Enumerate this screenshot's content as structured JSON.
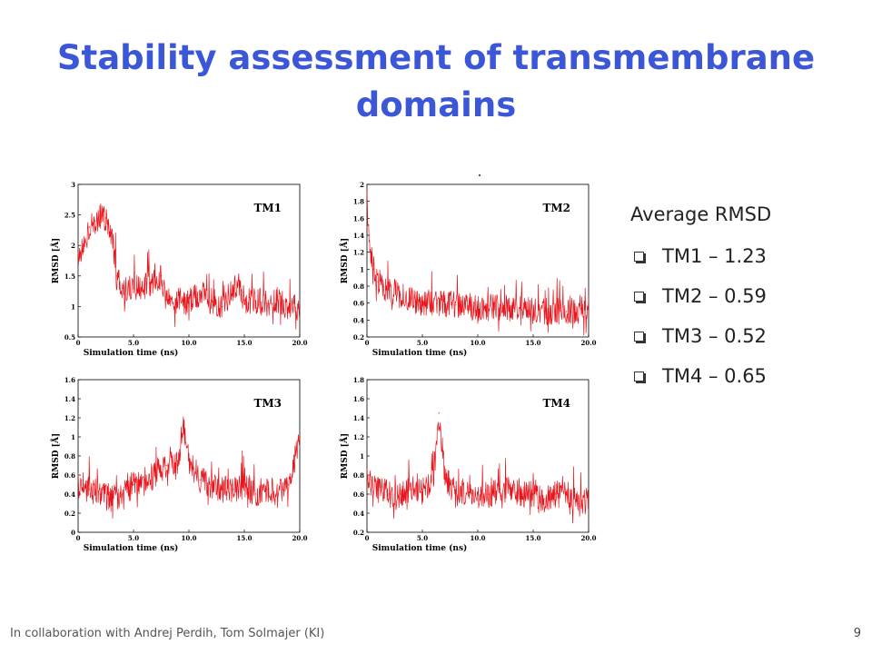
{
  "slide": {
    "title": "Stability assessment of transmembrane domains",
    "footer": "In collaboration with Andrej Perdih, Tom Solmajer (KI)",
    "page_number": "9"
  },
  "summary": {
    "heading": "Average RMSD",
    "items": [
      "TM1 – 1.23",
      "TM2 – 0.59",
      "TM3 – 0.52",
      "TM4 – 0.65"
    ]
  },
  "colors": {
    "title": "#3b57d8",
    "line": "#e8141b"
  },
  "chart_data": [
    {
      "type": "line",
      "label": "TM1",
      "xlabel": "Simulation time (ns)",
      "ylabel": "RMSD [Å]",
      "xlim": [
        0,
        20
      ],
      "ylim": [
        0.5,
        3
      ],
      "xticks": [
        "0",
        "5.0",
        "10.0",
        "15.0",
        "20.0"
      ],
      "xtick_values": [
        0,
        5,
        10,
        15,
        20
      ],
      "yticks": [
        "0.5",
        "1",
        "1.5",
        "2",
        "2.5",
        "3"
      ],
      "ytick_values": [
        0.5,
        1,
        1.5,
        2,
        2.5,
        3
      ],
      "mean": 1.23,
      "series": [
        {
          "x": [
            0,
            0.5,
            1,
            1.5,
            2,
            2.5,
            3,
            3.5,
            4,
            5,
            6,
            7,
            7.5,
            8,
            9,
            10,
            11,
            12,
            13,
            14,
            14.5,
            15,
            16,
            17,
            18,
            19,
            20
          ],
          "values": [
            1.7,
            2.0,
            2.3,
            2.4,
            2.5,
            2.45,
            2.2,
            1.5,
            1.3,
            1.3,
            1.35,
            1.35,
            1.5,
            1.1,
            1.1,
            1.05,
            1.2,
            1.1,
            1.0,
            1.3,
            1.35,
            1.1,
            1.1,
            1.05,
            1.1,
            1.0,
            1.0
          ]
        }
      ]
    },
    {
      "type": "line",
      "label": "TM2",
      "xlabel": "Simulation time (ns)",
      "ylabel": "RMSD [Å]",
      "xlim": [
        0,
        20
      ],
      "ylim": [
        0.2,
        2
      ],
      "xticks": [
        "0",
        "5.0",
        "10.0",
        "15.0",
        "20.0"
      ],
      "xtick_values": [
        0,
        5,
        10,
        15,
        20
      ],
      "yticks": [
        "0.2",
        "0.4",
        "0.6",
        "0.8",
        "1",
        "1.2",
        "1.4",
        "1.6",
        "1.8",
        "2"
      ],
      "ytick_values": [
        0.2,
        0.4,
        0.6,
        0.8,
        1,
        1.2,
        1.4,
        1.6,
        1.8,
        2
      ],
      "mean": 0.59,
      "series": [
        {
          "x": [
            0,
            0.3,
            0.6,
            1,
            2,
            3,
            4,
            5,
            6,
            8,
            10,
            12,
            14,
            16,
            18,
            20
          ],
          "values": [
            1.8,
            1.2,
            1.0,
            0.85,
            0.75,
            0.7,
            0.65,
            0.6,
            0.62,
            0.58,
            0.55,
            0.55,
            0.52,
            0.5,
            0.5,
            0.52
          ]
        }
      ]
    },
    {
      "type": "line",
      "label": "TM3",
      "xlabel": "Simulation time (ns)",
      "ylabel": "RMSD [Å]",
      "xlim": [
        0,
        20
      ],
      "ylim": [
        0,
        1.6
      ],
      "xticks": [
        "0",
        "5.0",
        "10.0",
        "15.0",
        "20.0"
      ],
      "xtick_values": [
        0,
        5,
        10,
        15,
        20
      ],
      "yticks": [
        "0",
        "0.2",
        "0.4",
        "0.6",
        "0.8",
        "1",
        "1.2",
        "1.4",
        "1.6"
      ],
      "ytick_values": [
        0,
        0.2,
        0.4,
        0.6,
        0.8,
        1,
        1.2,
        1.4,
        1.6
      ],
      "mean": 0.52,
      "series": [
        {
          "x": [
            0,
            1,
            2,
            3,
            4,
            5,
            6,
            7,
            8,
            9,
            9.5,
            10,
            11,
            12,
            13,
            14,
            15,
            16,
            17,
            18,
            19,
            19.5,
            20
          ],
          "values": [
            0.5,
            0.45,
            0.4,
            0.35,
            0.4,
            0.5,
            0.55,
            0.6,
            0.7,
            0.75,
            1.1,
            0.75,
            0.55,
            0.5,
            0.45,
            0.45,
            0.5,
            0.4,
            0.45,
            0.4,
            0.5,
            0.8,
            1.0
          ]
        }
      ]
    },
    {
      "type": "line",
      "label": "TM4",
      "xlabel": "Simulation time (ns)",
      "ylabel": "RMSD [Å]",
      "xlim": [
        0,
        20
      ],
      "ylim": [
        0.2,
        1.8
      ],
      "xticks": [
        "0",
        "5.0",
        "10.0",
        "15.0",
        "20.0"
      ],
      "xtick_values": [
        0,
        5,
        10,
        15,
        20
      ],
      "yticks": [
        "0.2",
        "0.4",
        "0.6",
        "0.8",
        "1",
        "1.2",
        "1.4",
        "1.6",
        "1.8"
      ],
      "ytick_values": [
        0.2,
        0.4,
        0.6,
        0.8,
        1,
        1.2,
        1.4,
        1.6,
        1.8
      ],
      "mean": 0.65,
      "series": [
        {
          "x": [
            0,
            1,
            2,
            3,
            4,
            5,
            6,
            6.5,
            7,
            8,
            9,
            10,
            11,
            12,
            13,
            14,
            15,
            16,
            17,
            18,
            19,
            20
          ],
          "values": [
            0.75,
            0.65,
            0.6,
            0.6,
            0.65,
            0.65,
            0.75,
            1.45,
            0.8,
            0.6,
            0.6,
            0.6,
            0.6,
            0.65,
            0.65,
            0.6,
            0.6,
            0.55,
            0.6,
            0.6,
            0.5,
            0.55
          ]
        }
      ]
    }
  ]
}
